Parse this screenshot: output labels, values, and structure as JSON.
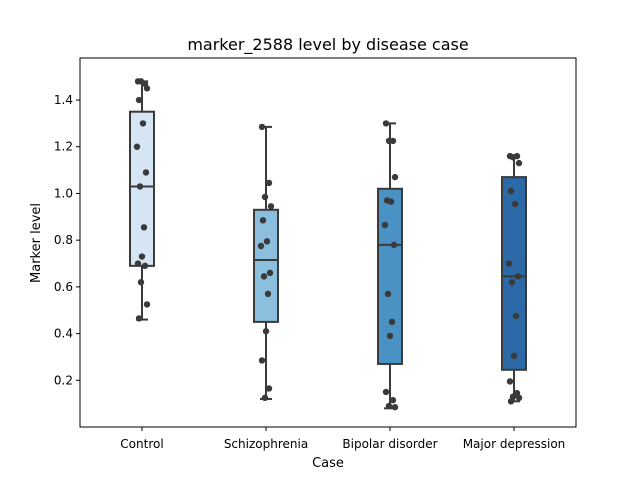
{
  "chart_data": {
    "type": "box",
    "title": "marker_2588 level by disease case",
    "xlabel": "Case",
    "ylabel": "Marker level",
    "ylim": [
      0.0,
      1.58
    ],
    "yticks": [
      "0.2",
      "0.4",
      "0.6",
      "0.8",
      "1.0",
      "1.2",
      "1.4"
    ],
    "categories": [
      "Control",
      "Schizophrenia",
      "Bipolar disorder",
      "Major depression"
    ],
    "box_colors": [
      "#d6e5f4",
      "#8bbfdd",
      "#4a91c4",
      "#2b6aa6"
    ],
    "line_color": "#3a3a3a",
    "point_color": "#3a3a3a",
    "boxes": [
      {
        "q1": 0.69,
        "median": 1.03,
        "q3": 1.35,
        "whisker_low": 0.46,
        "whisker_high": 1.48
      },
      {
        "q1": 0.45,
        "median": 0.715,
        "q3": 0.93,
        "whisker_low": 0.12,
        "whisker_high": 1.285
      },
      {
        "q1": 0.27,
        "median": 0.78,
        "q3": 1.02,
        "whisker_low": 0.08,
        "whisker_high": 1.3
      },
      {
        "q1": 0.245,
        "median": 0.645,
        "q3": 1.07,
        "whisker_low": 0.11,
        "whisker_high": 1.16
      }
    ],
    "points": [
      [
        1.48,
        1.47,
        1.48,
        1.45,
        1.4,
        1.3,
        1.2,
        1.09,
        1.03,
        0.855,
        0.73,
        0.7,
        0.69,
        0.62,
        0.525,
        0.465
      ],
      [
        1.285,
        1.045,
        0.985,
        0.945,
        0.885,
        0.795,
        0.775,
        0.66,
        0.645,
        0.57,
        0.41,
        0.285,
        0.165,
        0.125
      ],
      [
        1.3,
        1.225,
        1.225,
        1.07,
        0.97,
        0.965,
        0.865,
        0.78,
        0.57,
        0.45,
        0.39,
        0.15,
        0.115,
        0.09,
        0.085
      ],
      [
        1.16,
        1.16,
        1.155,
        1.13,
        1.01,
        0.955,
        0.7,
        0.645,
        0.62,
        0.475,
        0.305,
        0.195,
        0.145,
        0.13,
        0.125,
        0.11
      ]
    ]
  }
}
